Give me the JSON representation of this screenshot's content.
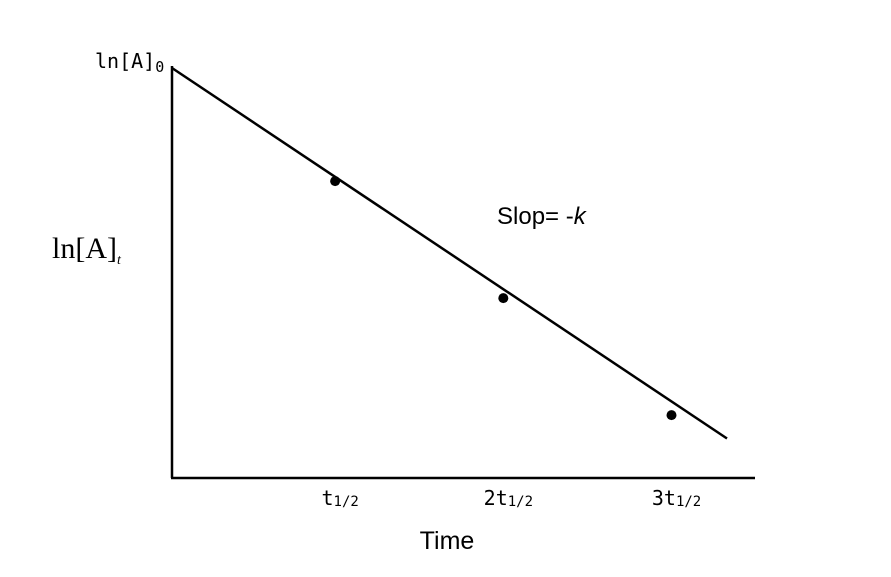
{
  "chart_data": {
    "type": "line",
    "x_axis": {
      "label": "Time",
      "ticks": [
        {
          "value": 1,
          "main": "t",
          "sub": "1/2"
        },
        {
          "value": 2,
          "main": "2t",
          "sub": "1/2"
        },
        {
          "value": 3,
          "main": "3t",
          "sub": "1/2"
        }
      ],
      "range": [
        0,
        3.3
      ]
    },
    "y_axis": {
      "label": {
        "main": "ln[A]",
        "sub": "t"
      },
      "start_label": {
        "main": "ln[A]",
        "sub": "0"
      },
      "range": [
        0,
        1
      ]
    },
    "series": [
      {
        "line": [
          [
            0,
            1
          ],
          [
            3.3,
            0.05
          ]
        ],
        "points": [
          [
            0.97,
            0.71
          ],
          [
            1.97,
            0.41
          ],
          [
            2.97,
            0.11
          ]
        ]
      }
    ],
    "annotation": {
      "text": "Slop= -",
      "symbol": "k"
    },
    "grid": false,
    "legend": "none",
    "line_color": "#000000",
    "marker_color": "#000000"
  }
}
